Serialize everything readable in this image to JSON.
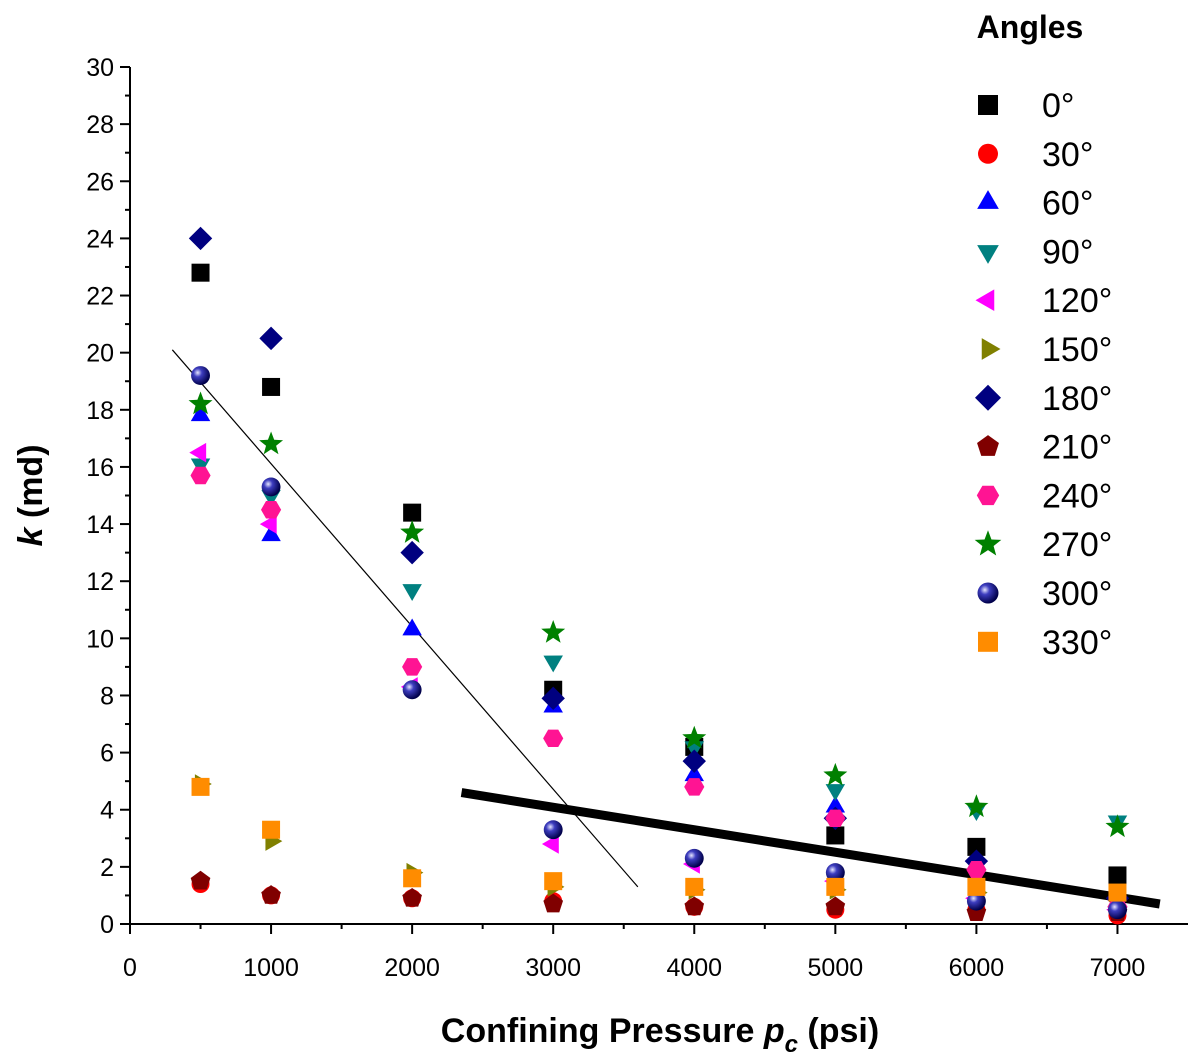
{
  "chart_data": {
    "type": "scatter",
    "title": "",
    "xlabel": {
      "main": "Confining Pressure ",
      "var": "p",
      "sub": "c",
      "unit": " (psi)"
    },
    "ylabel": {
      "var": "k",
      "unit": " (md)"
    },
    "xlim": [
      0,
      7500
    ],
    "ylim": [
      0,
      30
    ],
    "x_ticks": [
      0,
      1000,
      2000,
      3000,
      4000,
      5000,
      6000,
      7000
    ],
    "y_ticks": [
      0,
      2,
      4,
      6,
      8,
      10,
      12,
      14,
      16,
      18,
      20,
      22,
      24,
      26,
      28,
      30
    ],
    "grid": false,
    "legend": {
      "title": "Angles",
      "position": "top-right"
    },
    "x": [
      500,
      1000,
      2000,
      3000,
      4000,
      5000,
      6000,
      7000
    ],
    "series": [
      {
        "name": "0°",
        "marker": "square",
        "color": "#000000",
        "values": [
          22.8,
          18.8,
          14.4,
          8.2,
          6.2,
          3.1,
          2.7,
          1.7
        ]
      },
      {
        "name": "30°",
        "marker": "circle",
        "color": "#ff0000",
        "values": [
          1.4,
          1.0,
          0.9,
          0.8,
          0.6,
          0.5,
          0.5,
          0.3
        ]
      },
      {
        "name": "60°",
        "marker": "triangle-up",
        "color": "#0000ff",
        "values": [
          17.8,
          13.6,
          10.3,
          7.6,
          5.2,
          4.1,
          2.1,
          0.8
        ]
      },
      {
        "name": "90°",
        "marker": "triangle-down",
        "color": "#008080",
        "values": [
          16.1,
          15.0,
          11.7,
          9.2,
          6.2,
          4.7,
          4.0,
          3.6
        ]
      },
      {
        "name": "120°",
        "marker": "triangle-left",
        "color": "#ff00ff",
        "values": [
          16.5,
          14.0,
          8.3,
          2.8,
          2.1,
          1.5,
          0.9,
          0.5
        ]
      },
      {
        "name": "150°",
        "marker": "triangle-right",
        "color": "#808000",
        "values": [
          4.9,
          2.9,
          1.8,
          1.3,
          1.2,
          1.2,
          1.1,
          0.9
        ]
      },
      {
        "name": "180°",
        "marker": "diamond",
        "color": "#000080",
        "values": [
          24.0,
          20.5,
          13.0,
          7.9,
          5.7,
          3.7,
          2.2,
          0.9
        ]
      },
      {
        "name": "210°",
        "marker": "pentagon",
        "color": "#800000",
        "values": [
          1.5,
          1.0,
          0.9,
          0.7,
          0.6,
          0.6,
          0.4,
          0.4
        ]
      },
      {
        "name": "240°",
        "marker": "hexagon",
        "color": "#ff1493",
        "values": [
          15.7,
          14.5,
          9.0,
          6.5,
          4.8,
          3.7,
          1.9,
          0.6
        ]
      },
      {
        "name": "270°",
        "marker": "star",
        "color": "#008000",
        "values": [
          18.2,
          16.8,
          13.7,
          10.2,
          6.5,
          5.2,
          4.1,
          3.4
        ]
      },
      {
        "name": "300°",
        "marker": "sphere",
        "color": "#00008b",
        "values": [
          19.2,
          15.3,
          8.2,
          3.3,
          2.3,
          1.8,
          0.8,
          0.5
        ]
      },
      {
        "name": "330°",
        "marker": "square",
        "color": "#ff8c00",
        "values": [
          4.8,
          3.3,
          1.6,
          1.5,
          1.3,
          1.3,
          1.3,
          1.1
        ]
      }
    ],
    "trend_lines": [
      {
        "style": "thin",
        "color": "#000000",
        "from": [
          300,
          20.1
        ],
        "to": [
          3600,
          1.3
        ]
      },
      {
        "style": "thick",
        "color": "#000000",
        "from": [
          2350,
          4.6
        ],
        "to": [
          7300,
          0.7
        ]
      }
    ]
  }
}
